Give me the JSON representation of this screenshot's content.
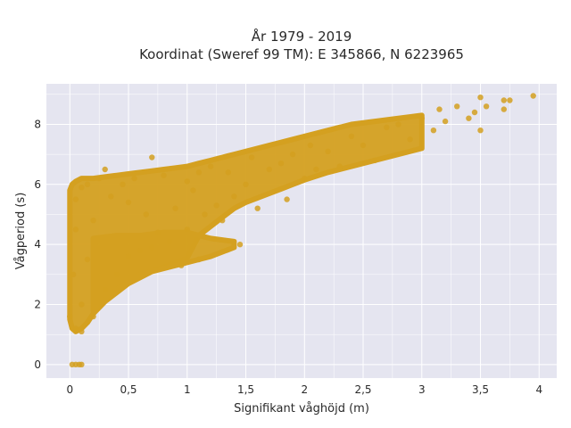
{
  "chart_data": {
    "type": "scatter",
    "title_lines": [
      "År 1979 - 2019",
      "Koordinat (Sweref 99 TM): E 345866, N 6223965"
    ],
    "xlabel": "Signifikant våghöjd (m)",
    "ylabel": "Vågperiod (s)",
    "xlim": [
      -0.2,
      4.15
    ],
    "ylim": [
      -0.45,
      9.35
    ],
    "x_ticks": [
      0,
      0.5,
      1,
      1.5,
      2,
      2.5,
      3,
      3.5,
      4
    ],
    "x_tick_labels": [
      "0",
      "0,5",
      "1",
      "1,5",
      "2",
      "2,5",
      "3",
      "3,5",
      "4"
    ],
    "y_ticks": [
      0,
      2,
      4,
      6,
      8
    ],
    "y_tick_labels": [
      "0",
      "2",
      "4",
      "6",
      "8"
    ],
    "grid": true,
    "legend": "none",
    "colors": {
      "marker": "#d4a020",
      "plot_background": "#e5e5f0",
      "grid": "#ffffff"
    },
    "points": [
      {
        "x": 0.02,
        "y": 0.0
      },
      {
        "x": 0.05,
        "y": 0.0
      },
      {
        "x": 0.08,
        "y": 0.0
      },
      {
        "x": 0.1,
        "y": 0.0
      },
      {
        "x": 0.0,
        "y": 1.6
      },
      {
        "x": 0.05,
        "y": 1.2
      },
      {
        "x": 0.1,
        "y": 1.1
      },
      {
        "x": 0.03,
        "y": 3.0
      },
      {
        "x": 0.05,
        "y": 4.5
      },
      {
        "x": 0.05,
        "y": 5.5
      },
      {
        "x": 0.1,
        "y": 5.9
      },
      {
        "x": 0.15,
        "y": 6.0
      },
      {
        "x": 0.1,
        "y": 2.0
      },
      {
        "x": 0.15,
        "y": 3.5
      },
      {
        "x": 0.2,
        "y": 1.6
      },
      {
        "x": 0.2,
        "y": 4.8
      },
      {
        "x": 0.25,
        "y": 6.2
      },
      {
        "x": 0.3,
        "y": 6.5
      },
      {
        "x": 0.3,
        "y": 2.5
      },
      {
        "x": 0.35,
        "y": 5.6
      },
      {
        "x": 0.4,
        "y": 3.0
      },
      {
        "x": 0.45,
        "y": 6.0
      },
      {
        "x": 0.5,
        "y": 3.6
      },
      {
        "x": 0.5,
        "y": 5.4
      },
      {
        "x": 0.55,
        "y": 6.2
      },
      {
        "x": 0.6,
        "y": 3.8
      },
      {
        "x": 0.65,
        "y": 5.0
      },
      {
        "x": 0.7,
        "y": 6.9
      },
      {
        "x": 0.7,
        "y": 3.9
      },
      {
        "x": 0.75,
        "y": 4.4
      },
      {
        "x": 0.8,
        "y": 6.3
      },
      {
        "x": 0.85,
        "y": 4.1
      },
      {
        "x": 0.9,
        "y": 5.2
      },
      {
        "x": 0.95,
        "y": 3.3
      },
      {
        "x": 1.0,
        "y": 6.1
      },
      {
        "x": 1.0,
        "y": 4.5
      },
      {
        "x": 1.05,
        "y": 5.8
      },
      {
        "x": 1.1,
        "y": 6.4
      },
      {
        "x": 1.1,
        "y": 3.5
      },
      {
        "x": 1.15,
        "y": 5.0
      },
      {
        "x": 1.2,
        "y": 6.6
      },
      {
        "x": 1.25,
        "y": 5.3
      },
      {
        "x": 1.3,
        "y": 4.8
      },
      {
        "x": 1.35,
        "y": 6.4
      },
      {
        "x": 1.4,
        "y": 5.6
      },
      {
        "x": 1.45,
        "y": 4.0
      },
      {
        "x": 1.5,
        "y": 6.0
      },
      {
        "x": 1.55,
        "y": 6.9
      },
      {
        "x": 1.6,
        "y": 5.2
      },
      {
        "x": 1.7,
        "y": 6.5
      },
      {
        "x": 1.8,
        "y": 6.7
      },
      {
        "x": 1.85,
        "y": 5.5
      },
      {
        "x": 1.9,
        "y": 7.0
      },
      {
        "x": 2.0,
        "y": 6.2
      },
      {
        "x": 2.05,
        "y": 7.3
      },
      {
        "x": 2.1,
        "y": 6.5
      },
      {
        "x": 2.2,
        "y": 7.1
      },
      {
        "x": 2.3,
        "y": 6.6
      },
      {
        "x": 2.4,
        "y": 7.6
      },
      {
        "x": 2.5,
        "y": 7.3
      },
      {
        "x": 2.6,
        "y": 6.8
      },
      {
        "x": 2.7,
        "y": 7.9
      },
      {
        "x": 2.8,
        "y": 8.0
      },
      {
        "x": 2.9,
        "y": 7.5
      },
      {
        "x": 3.0,
        "y": 8.2
      },
      {
        "x": 3.1,
        "y": 7.8
      },
      {
        "x": 3.15,
        "y": 8.5
      },
      {
        "x": 3.2,
        "y": 8.1
      },
      {
        "x": 3.3,
        "y": 8.6
      },
      {
        "x": 3.4,
        "y": 8.2
      },
      {
        "x": 3.45,
        "y": 8.4
      },
      {
        "x": 3.5,
        "y": 7.8
      },
      {
        "x": 3.5,
        "y": 8.9
      },
      {
        "x": 3.55,
        "y": 8.6
      },
      {
        "x": 3.7,
        "y": 8.8
      },
      {
        "x": 3.75,
        "y": 8.8
      },
      {
        "x": 3.7,
        "y": 8.5
      },
      {
        "x": 3.95,
        "y": 8.95
      }
    ],
    "density_bands": [
      {
        "x": [
          0.0,
          0.02,
          0.05,
          0.1,
          0.15,
          0.2,
          0.3,
          0.4,
          0.5,
          0.6,
          0.7,
          0.8,
          0.9,
          1.0,
          1.1,
          1.2,
          1.3,
          1.4,
          1.5,
          1.6,
          1.7,
          1.8,
          1.9,
          2.0,
          2.2,
          2.4,
          2.6,
          2.8,
          3.0
        ],
        "y_low": [
          1.5,
          1.2,
          1.1,
          1.2,
          1.4,
          1.7,
          2.1,
          2.4,
          2.7,
          2.9,
          3.1,
          3.25,
          3.4,
          3.55,
          4.3,
          4.6,
          4.9,
          5.2,
          5.4,
          5.55,
          5.7,
          5.85,
          6.0,
          6.15,
          6.4,
          6.6,
          6.8,
          7.0,
          7.2
        ],
        "y_high": [
          5.8,
          6.0,
          6.1,
          6.2,
          6.2,
          6.2,
          6.25,
          6.3,
          6.35,
          6.4,
          6.45,
          6.5,
          6.55,
          6.6,
          6.7,
          6.8,
          6.9,
          7.0,
          7.1,
          7.2,
          7.3,
          7.4,
          7.5,
          7.6,
          7.8,
          8.0,
          8.1,
          8.2,
          8.3
        ]
      },
      {
        "x": [
          0.2,
          0.4,
          0.6,
          0.8,
          1.0,
          1.2,
          1.4
        ],
        "y_low": [
          1.8,
          2.5,
          3.0,
          3.2,
          3.4,
          3.6,
          3.9
        ],
        "y_high": [
          4.2,
          4.3,
          4.3,
          4.4,
          4.4,
          4.2,
          4.1
        ]
      }
    ]
  }
}
